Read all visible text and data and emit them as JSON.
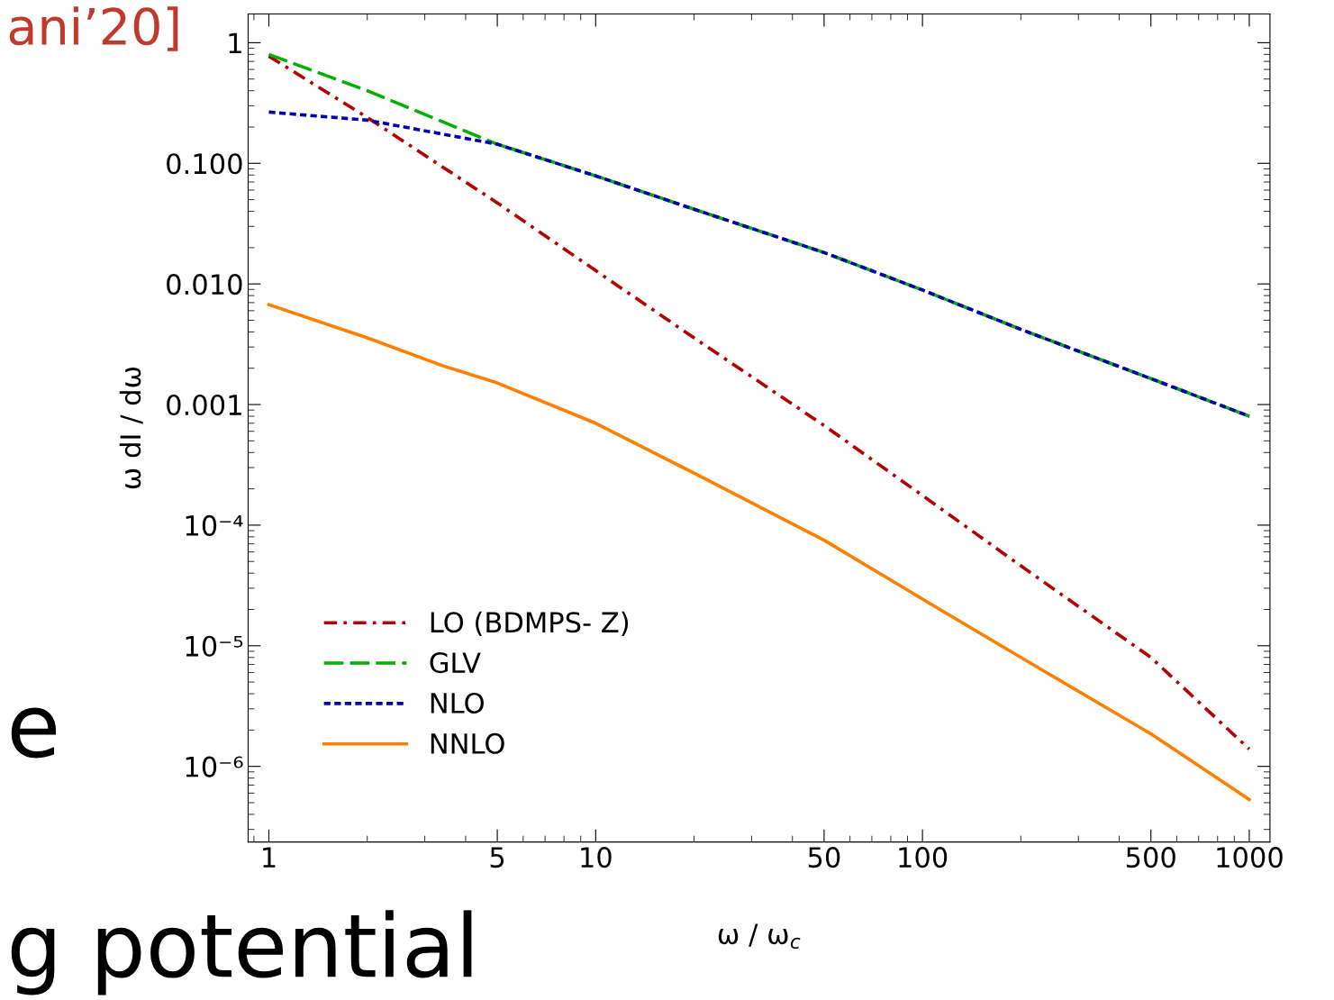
{
  "chart_data": {
    "type": "line",
    "xlabel": "ω / ω$_{c}$",
    "ylabel": "ω dI / dω",
    "log": "xy",
    "grid": false,
    "legend": "bottom left",
    "marker": "none",
    "xlim": [
      0.864,
      1157
    ],
    "ylim": [
      2.36e-07,
      1.73
    ],
    "xticks": [
      1,
      5,
      10,
      50,
      100,
      500,
      1000
    ],
    "yticks": [
      1,
      {
        "value": 0.1,
        "label": "0.100"
      },
      {
        "value": 0.01,
        "label": "0.010"
      },
      {
        "value": 0.001,
        "label": "0.001"
      },
      {
        "value": 0.0001,
        "label": "10⁻⁴"
      },
      {
        "value": 1e-05,
        "label": "10⁻⁵"
      },
      {
        "value": 1e-06,
        "label": "10⁻⁶"
      }
    ],
    "series": [
      {
        "name": "LO (BDMPS- Z)",
        "color": "#b30000",
        "line_style": "dashdot",
        "x": [
          1,
          2,
          5,
          10,
          20,
          50,
          100,
          200,
          500,
          1000
        ],
        "values": [
          0.773,
          0.24,
          0.047,
          0.0129,
          0.00357,
          0.00067,
          0.000176,
          4.6e-05,
          8e-06,
          1.39e-06
        ]
      },
      {
        "name": "GLV",
        "color": "#00b000",
        "line_style": "dashed",
        "x": [
          1,
          2,
          5,
          10,
          20,
          50,
          100,
          200,
          500,
          1000
        ],
        "values": [
          0.8,
          0.4,
          0.144,
          0.0787,
          0.0416,
          0.0182,
          0.0089,
          0.0042,
          0.00164,
          0.0008
        ]
      },
      {
        "name": "NLO",
        "color": "#0000b0",
        "line_style": "dotted",
        "x": [
          1,
          2,
          3,
          5,
          10,
          20,
          50,
          100,
          200,
          500,
          1000
        ],
        "values": [
          0.266,
          0.228,
          0.186,
          0.144,
          0.0787,
          0.0416,
          0.0182,
          0.0089,
          0.0042,
          0.00164,
          0.0008
        ]
      },
      {
        "name": "NNLO",
        "color": "#ff8000",
        "line_style": "solid",
        "x": [
          1,
          2,
          3.4,
          5,
          10,
          20,
          50,
          100,
          200,
          500,
          1000
        ],
        "values": [
          0.00673,
          0.00357,
          0.0021,
          0.00151,
          0.0007,
          0.00027,
          7.5e-05,
          2.44e-05,
          8e-06,
          1.86e-06,
          5.3e-07
        ]
      }
    ],
    "annotations": [
      "ani’20]",
      "e",
      "g potential"
    ]
  }
}
